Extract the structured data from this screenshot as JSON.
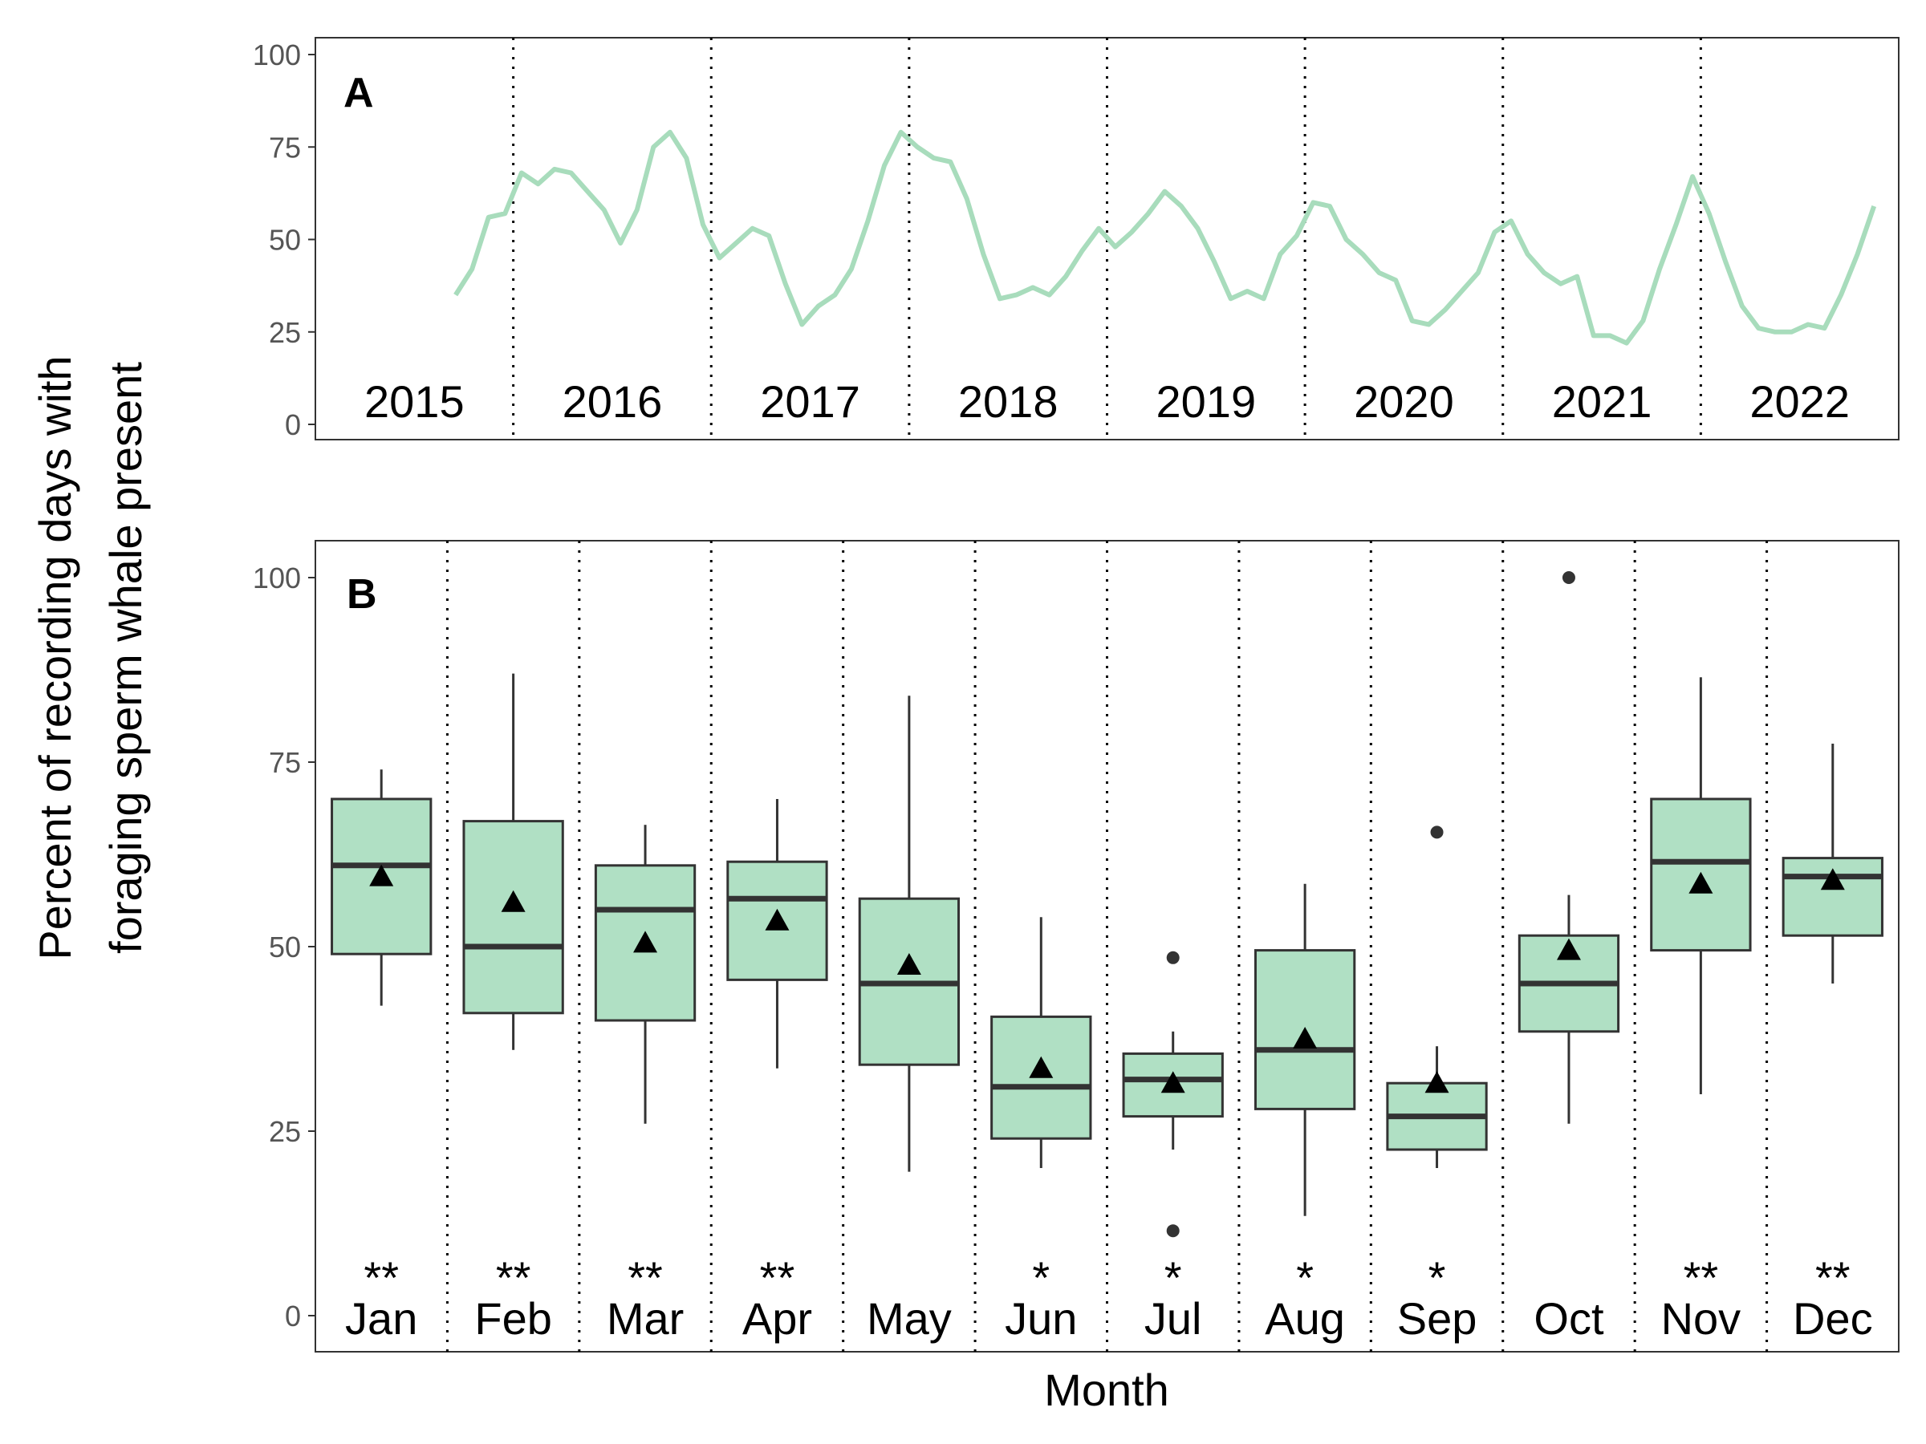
{
  "chart_data": [
    {
      "type": "line",
      "panel": "A",
      "ylim": [
        0,
        100
      ],
      "yticks": [
        0,
        25,
        50,
        75,
        100
      ],
      "years": [
        "2015",
        "2016",
        "2017",
        "2018",
        "2019",
        "2020",
        "2021",
        "2022"
      ],
      "color": "#a8dcbc",
      "x_months_since_start": "note",
      "series": [
        {
          "values_by_month": [
            null,
            null,
            null,
            null,
            null,
            null,
            null,
            null,
            35,
            42,
            56,
            57,
            68,
            65,
            69,
            68,
            63,
            58,
            49,
            58,
            75,
            79,
            72,
            54,
            45,
            49,
            53,
            51,
            38,
            27,
            32,
            35,
            42,
            55,
            70,
            79,
            75,
            72,
            71,
            61,
            46,
            34,
            35,
            37,
            35,
            40,
            47,
            53,
            48,
            52,
            57,
            63,
            59,
            53,
            44,
            34,
            36,
            34,
            46,
            51,
            60,
            59,
            50,
            46,
            41,
            39,
            28,
            27,
            31,
            36,
            41,
            52,
            55,
            46,
            41,
            38,
            40,
            24,
            24,
            22,
            28,
            42,
            54,
            67,
            57,
            44,
            32,
            26,
            25,
            25,
            27,
            26,
            35,
            46,
            59
          ]
        }
      ]
    },
    {
      "type": "box",
      "panel": "B",
      "ylim": [
        0,
        100
      ],
      "yticks": [
        0,
        25,
        50,
        75,
        100
      ],
      "xlabel": "Month",
      "categories": [
        "Jan",
        "Feb",
        "Mar",
        "Apr",
        "May",
        "Jun",
        "Jul",
        "Aug",
        "Sep",
        "Oct",
        "Nov",
        "Dec"
      ],
      "significance": [
        "**",
        "**",
        "**",
        "**",
        "",
        "*",
        "*",
        "*",
        "*",
        "",
        "**",
        "**"
      ],
      "fill": "#b0e0c4",
      "boxes": [
        {
          "min": 42,
          "q1": 49,
          "median": 61,
          "q3": 70,
          "max": 74,
          "mean": 59.5,
          "outliers": []
        },
        {
          "min": 36,
          "q1": 41,
          "median": 50,
          "q3": 67,
          "max": 87,
          "mean": 56,
          "outliers": []
        },
        {
          "min": 26,
          "q1": 40,
          "median": 55,
          "q3": 61,
          "max": 66.5,
          "mean": 50.5,
          "outliers": []
        },
        {
          "min": 33.5,
          "q1": 45.5,
          "median": 56.5,
          "q3": 61.5,
          "max": 70,
          "mean": 53.5,
          "outliers": []
        },
        {
          "min": 19.5,
          "q1": 34,
          "median": 45,
          "q3": 56.5,
          "max": 84,
          "mean": 47.5,
          "outliers": []
        },
        {
          "min": 20,
          "q1": 24,
          "median": 31,
          "q3": 40.5,
          "max": 54,
          "mean": 33.5,
          "outliers": []
        },
        {
          "min": 22.5,
          "q1": 27,
          "median": 32,
          "q3": 35.5,
          "max": 38.5,
          "mean": 31.5,
          "outliers": [
            48.5,
            11.5
          ]
        },
        {
          "min": 13.5,
          "q1": 28,
          "median": 36,
          "q3": 49.5,
          "max": 58.5,
          "mean": 37.5,
          "outliers": []
        },
        {
          "min": 20,
          "q1": 22.5,
          "median": 27,
          "q3": 31.5,
          "max": 36.5,
          "mean": 31.5,
          "outliers": [
            65.5
          ]
        },
        {
          "min": 26,
          "q1": 38.5,
          "median": 45,
          "q3": 51.5,
          "max": 57,
          "mean": 49.5,
          "outliers": [
            100
          ]
        },
        {
          "min": 30,
          "q1": 49.5,
          "median": 61.5,
          "q3": 70,
          "max": 86.5,
          "mean": 58.5,
          "outliers": []
        },
        {
          "min": 45,
          "q1": 51.5,
          "median": 59.5,
          "q3": 62,
          "max": 77.5,
          "mean": 59,
          "outliers": []
        }
      ]
    }
  ],
  "labels": {
    "panel_a": "A",
    "panel_b": "B",
    "ylabel_line1": "Percent of recording days with",
    "ylabel_line2": "foraging sperm whale present"
  }
}
